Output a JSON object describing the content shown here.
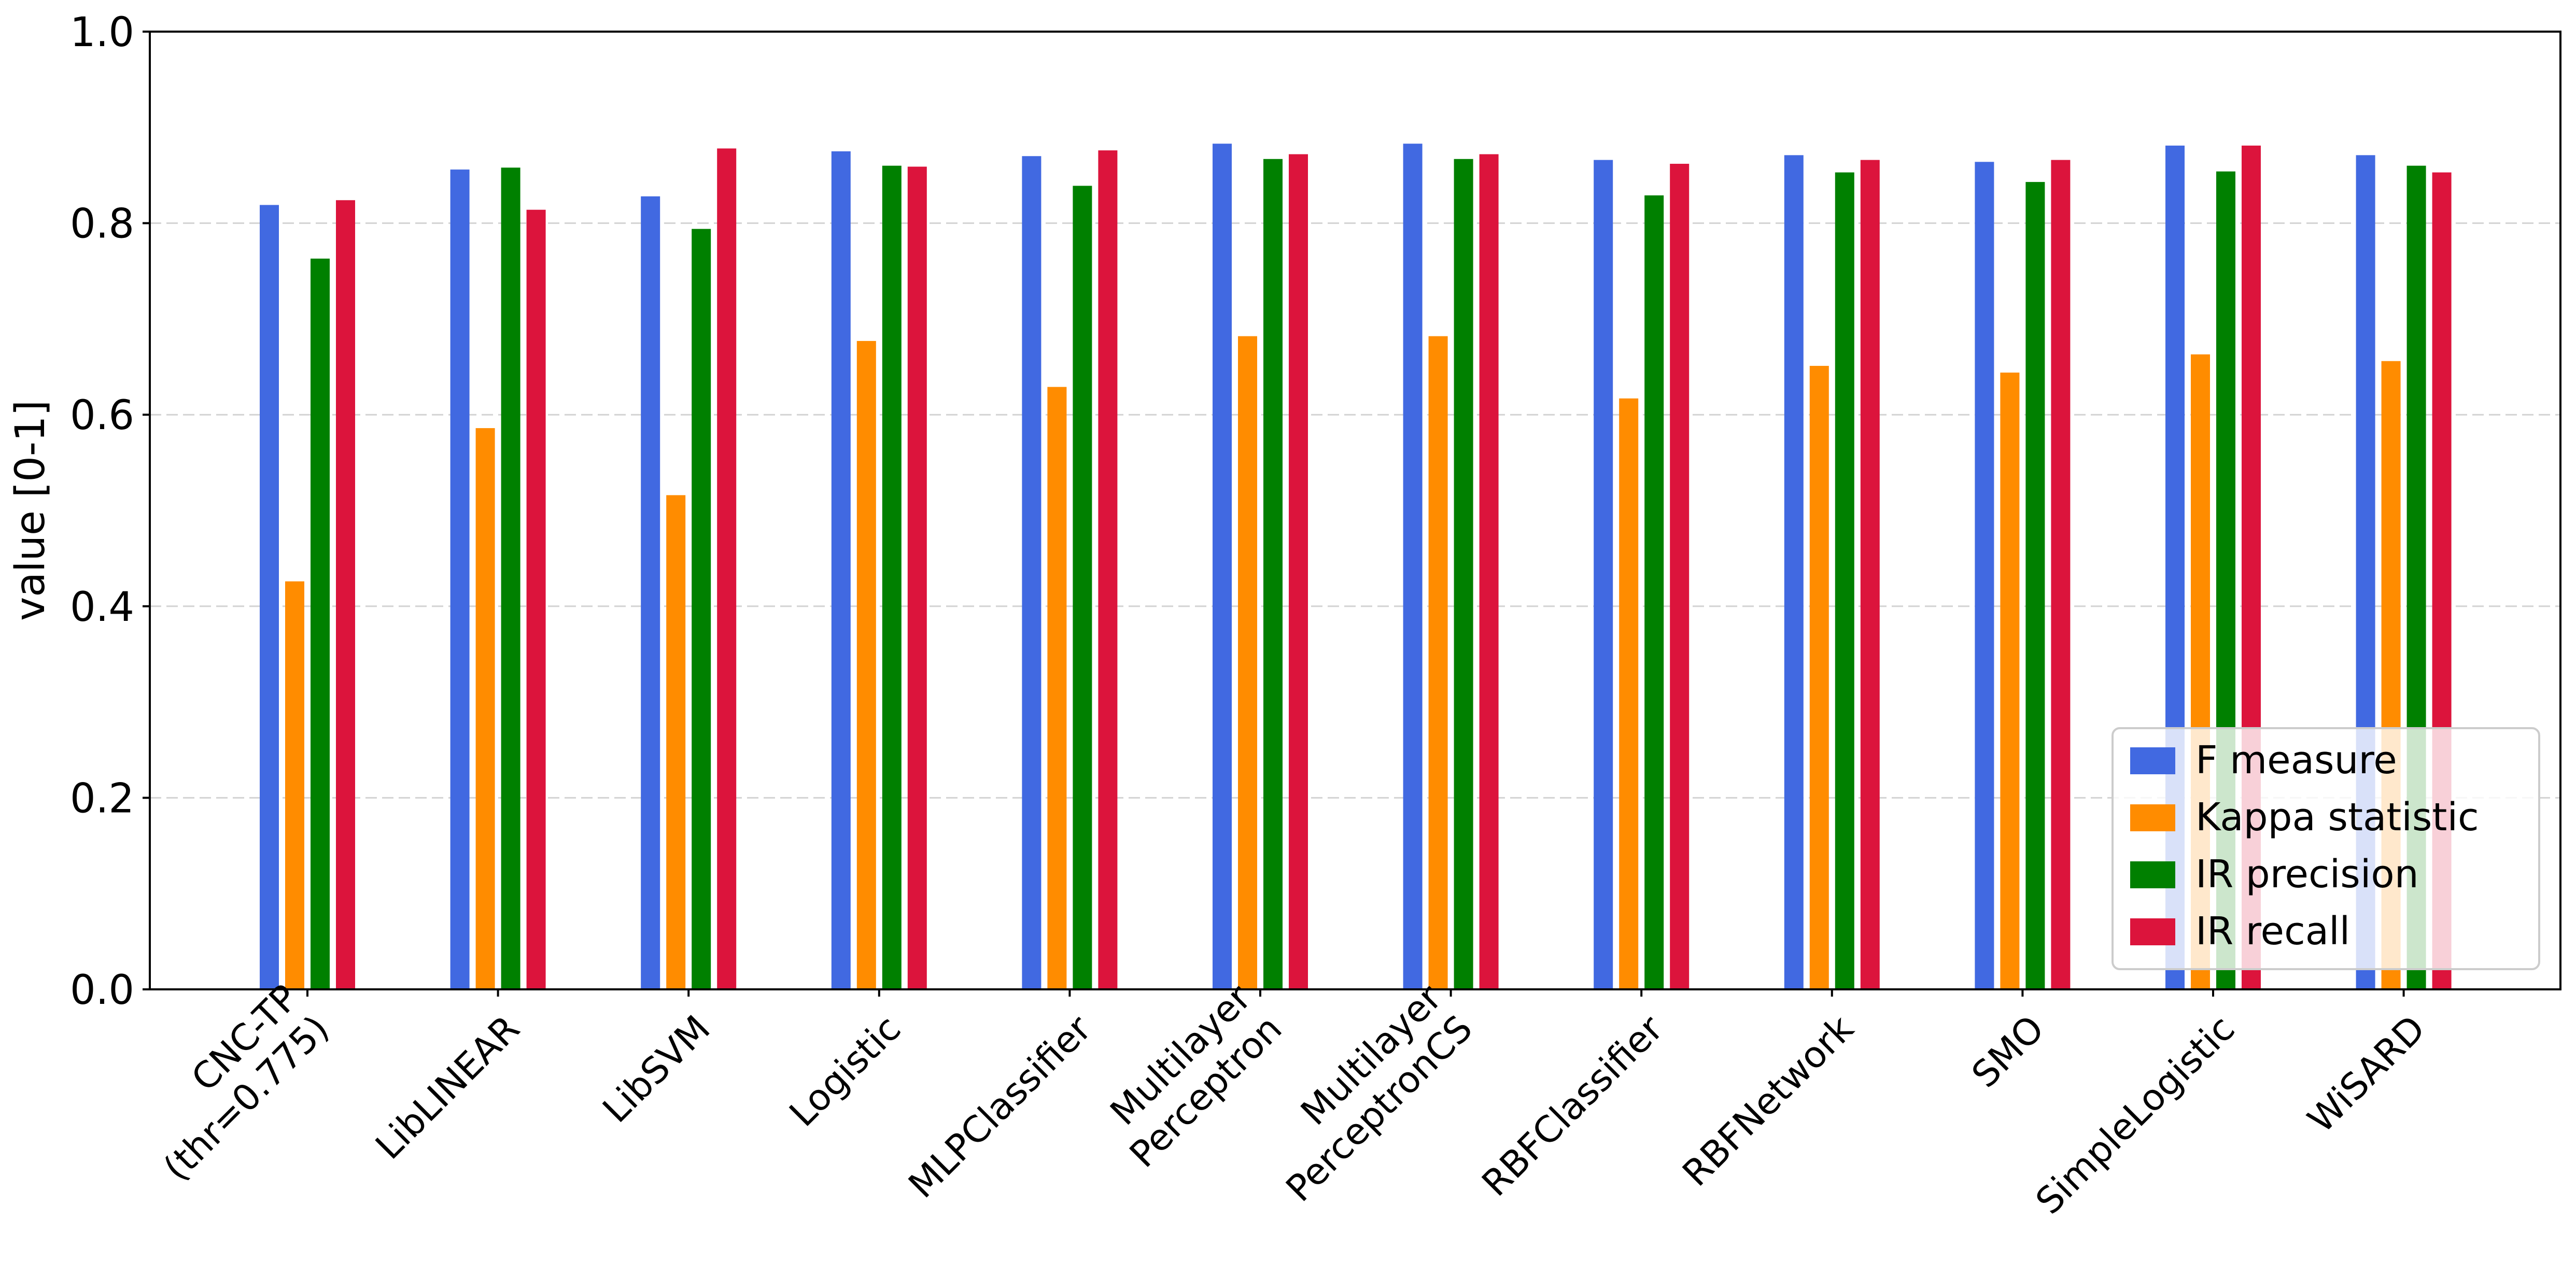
{
  "chart_data": {
    "type": "bar",
    "title": "",
    "xlabel": "",
    "ylabel": "value [0-1]",
    "ylim": [
      0,
      1.0
    ],
    "yticks": [
      "0.0",
      "0.2",
      "0.4",
      "0.6",
      "0.8",
      "1.0"
    ],
    "grid": {
      "axis": "y",
      "style": "dashed",
      "color": "#d3d3d3"
    },
    "legend_position": "lower right",
    "categories": [
      "CNC-TP\n(thr=0.775)",
      "LibLINEAR",
      "LibSVM",
      "Logistic",
      "MLPClassifier",
      "Multilayer\nPerceptron",
      "Multilayer\nPerceptronCS",
      "RBFClassifier",
      "RBFNetwork",
      "SMO",
      "SimpleLogistic",
      "WiSARD"
    ],
    "series": [
      {
        "name": "F measure",
        "color": "#4169e1",
        "values": [
          0.819,
          0.856,
          0.828,
          0.875,
          0.87,
          0.883,
          0.883,
          0.866,
          0.871,
          0.864,
          0.881,
          0.871
        ]
      },
      {
        "name": "Kappa statistic",
        "color": "#ff8c00",
        "values": [
          0.426,
          0.586,
          0.516,
          0.677,
          0.629,
          0.682,
          0.682,
          0.617,
          0.651,
          0.644,
          0.663,
          0.656
        ]
      },
      {
        "name": "IR precision",
        "color": "#008000",
        "values": [
          0.763,
          0.858,
          0.794,
          0.86,
          0.839,
          0.867,
          0.867,
          0.829,
          0.853,
          0.843,
          0.854,
          0.86
        ]
      },
      {
        "name": "IR recall",
        "color": "#dc143c",
        "values": [
          0.824,
          0.814,
          0.878,
          0.859,
          0.876,
          0.872,
          0.872,
          0.862,
          0.866,
          0.866,
          0.881,
          0.853
        ]
      }
    ]
  }
}
